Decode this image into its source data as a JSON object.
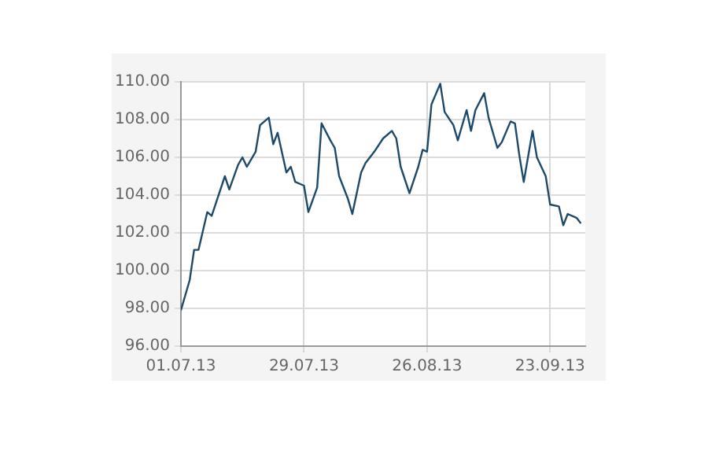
{
  "chart_data": {
    "type": "line",
    "color": "#1d4a6b",
    "grid": true,
    "legend": false,
    "marker": "none",
    "line_style": "solid",
    "x": [
      "2013-07-01",
      "2013-07-03",
      "2013-07-04",
      "2013-07-05",
      "2013-07-07",
      "2013-07-08",
      "2013-07-09",
      "2013-07-11",
      "2013-07-12",
      "2013-07-14",
      "2013-07-15",
      "2013-07-16",
      "2013-07-18",
      "2013-07-19",
      "2013-07-21",
      "2013-07-22",
      "2013-07-23",
      "2013-07-25",
      "2013-07-26",
      "2013-07-27",
      "2013-07-29",
      "2013-07-30",
      "2013-08-01",
      "2013-08-02",
      "2013-08-04",
      "2013-08-05",
      "2013-08-06",
      "2013-08-08",
      "2013-08-09",
      "2013-08-11",
      "2013-08-12",
      "2013-08-14",
      "2013-08-16",
      "2013-08-18",
      "2013-08-19",
      "2013-08-20",
      "2013-08-22",
      "2013-08-24",
      "2013-08-25",
      "2013-08-26",
      "2013-08-27",
      "2013-08-29",
      "2013-08-30",
      "2013-09-01",
      "2013-09-02",
      "2013-09-04",
      "2013-09-05",
      "2013-09-06",
      "2013-09-08",
      "2013-09-09",
      "2013-09-11",
      "2013-09-12",
      "2013-09-14",
      "2013-09-15",
      "2013-09-16",
      "2013-09-17",
      "2013-09-19",
      "2013-09-20",
      "2013-09-22",
      "2013-09-23",
      "2013-09-25",
      "2013-09-26",
      "2013-09-27",
      "2013-09-29",
      "2013-09-30"
    ],
    "values": [
      97.9,
      99.5,
      101.1,
      101.1,
      103.1,
      102.9,
      103.6,
      105.0,
      104.3,
      105.6,
      106.0,
      105.5,
      106.3,
      107.7,
      108.1,
      106.7,
      107.3,
      105.2,
      105.5,
      104.7,
      104.5,
      103.1,
      104.4,
      107.8,
      106.9,
      106.5,
      105.0,
      103.8,
      103.0,
      105.2,
      105.7,
      106.3,
      107.0,
      107.4,
      107.0,
      105.5,
      104.1,
      105.5,
      106.4,
      106.3,
      108.8,
      109.9,
      108.4,
      107.7,
      106.9,
      108.5,
      107.4,
      108.5,
      109.4,
      108.1,
      106.5,
      106.8,
      107.9,
      107.8,
      106.1,
      104.7,
      107.4,
      106.0,
      105.0,
      103.5,
      103.4,
      102.4,
      103.0,
      102.8,
      102.5
    ],
    "xlim": [
      "2013-07-01",
      "2013-10-01"
    ],
    "xticks": [
      {
        "value": "2013-07-01",
        "label": "01.07.13"
      },
      {
        "value": "2013-07-29",
        "label": "29.07.13"
      },
      {
        "value": "2013-08-26",
        "label": "26.08.13"
      },
      {
        "value": "2013-09-23",
        "label": "23.09.13"
      }
    ],
    "ylim": [
      96,
      110
    ],
    "yticks": [
      {
        "value": 96,
        "label": "96.00"
      },
      {
        "value": 98,
        "label": "98.00"
      },
      {
        "value": 100,
        "label": "100.00"
      },
      {
        "value": 102,
        "label": "102.00"
      },
      {
        "value": 104,
        "label": "104.00"
      },
      {
        "value": 106,
        "label": "106.00"
      },
      {
        "value": 108,
        "label": "108.00"
      },
      {
        "value": 110,
        "label": "110.00"
      }
    ]
  }
}
